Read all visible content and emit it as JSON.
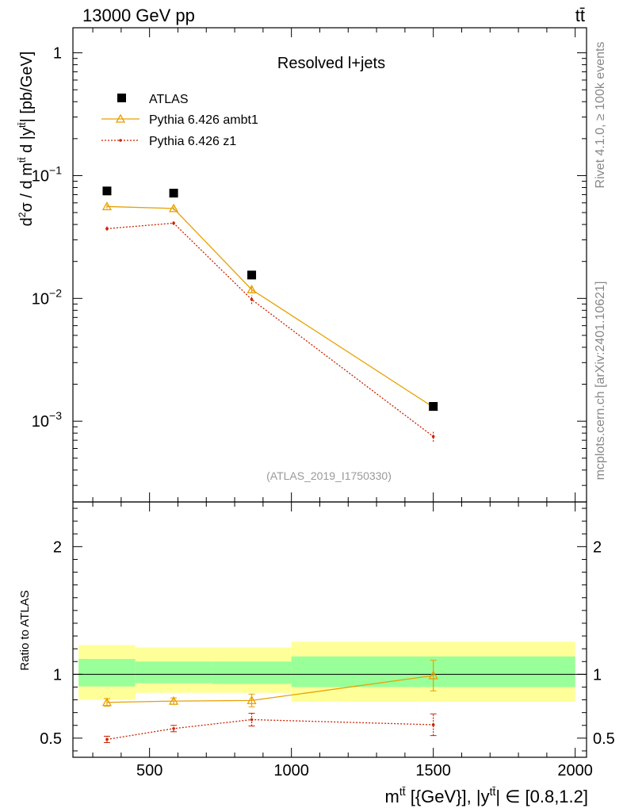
{
  "header": {
    "energy": "13000 GeV pp",
    "process": "tt̄"
  },
  "side_labels": {
    "rivet": "Rivet 4.1.0, ≥ 100k events",
    "mcplots": "mcplots.cern.ch [arXiv:2401.10621]"
  },
  "chart_data": [
    {
      "type": "scatter",
      "panel": "main",
      "title": "Resolved l+jets",
      "analysis_tag": "(ATLAS_2019_I1750330)",
      "ylabel_parts": {
        "d2": "d",
        "sup2": "2",
        "sigma": "σ /  d m",
        "tt1": "tt̄",
        "mid": " d |y",
        "tt2": "tt̄",
        "units": "| [pb/GeV]"
      },
      "yscale": "log",
      "ylim": [
        0.00022,
        1.6
      ],
      "xlim": [
        230,
        2040
      ],
      "y_ticks": [
        {
          "value": 1,
          "mant": "1",
          "exp": ""
        },
        {
          "value": 0.1,
          "mant": "10",
          "exp": "−1"
        },
        {
          "value": 0.01,
          "mant": "10",
          "exp": "−2"
        },
        {
          "value": 0.001,
          "mant": "10",
          "exp": "−3"
        }
      ],
      "legend": {
        "position": "top-left",
        "entries": [
          "ATLAS",
          "Pythia 6.426 ambt1",
          "Pythia 6.426 z1"
        ]
      },
      "series": [
        {
          "name": "ATLAS",
          "marker": "square",
          "color": "#000000",
          "x": [
            350,
            585,
            860,
            1500
          ],
          "y": [
            0.075,
            0.072,
            0.0155,
            0.00132
          ]
        },
        {
          "name": "Pythia 6.426 ambt1",
          "marker": "triangle",
          "color": "#e8a000",
          "x": [
            350,
            585,
            860,
            1500
          ],
          "y": [
            0.056,
            0.054,
            0.0118,
            0.0013
          ],
          "yerr": [
            0.002,
            0.002,
            0.0008,
            9e-05
          ]
        },
        {
          "name": "Pythia 6.426 z1",
          "marker": "dot",
          "color": "#cc2200",
          "x": [
            350,
            585,
            860,
            1500
          ],
          "y": [
            0.037,
            0.041,
            0.0098,
            0.00075
          ],
          "yerr": [
            0.0015,
            0.0015,
            0.0008,
            7e-05
          ]
        }
      ]
    },
    {
      "type": "line",
      "panel": "ratio",
      "ylabel": "Ratio to ATLAS",
      "xlabel_parts": {
        "m": "m",
        "tt1": "tt̄",
        "mid": " [{GeV}], |y",
        "tt2": "tt̄",
        "range": "| ∈ [0.8,1.2]"
      },
      "ylim": [
        0.35,
        2.35
      ],
      "xlim": [
        230,
        2040
      ],
      "y_ticks": [
        {
          "value": 0.5,
          "label": "0.5"
        },
        {
          "value": 1,
          "label": "1"
        },
        {
          "value": 2,
          "label": "2"
        }
      ],
      "x_ticks": [
        {
          "value": 500,
          "label": "500"
        },
        {
          "value": 1000,
          "label": "1000"
        },
        {
          "value": 1500,
          "label": "1500"
        },
        {
          "value": 2000,
          "label": "2000"
        }
      ],
      "bands": [
        {
          "x0": 250,
          "x1": 450,
          "stat": [
            0.905,
            1.12
          ],
          "total": [
            0.8,
            1.23
          ]
        },
        {
          "x0": 450,
          "x1": 720,
          "stat": [
            0.93,
            1.1
          ],
          "total": [
            0.855,
            1.21
          ]
        },
        {
          "x0": 720,
          "x1": 1000,
          "stat": [
            0.925,
            1.1
          ],
          "total": [
            0.855,
            1.21
          ]
        },
        {
          "x0": 1000,
          "x1": 2000,
          "stat": [
            0.9,
            1.14
          ],
          "total": [
            0.785,
            1.255
          ]
        }
      ],
      "band_colors": {
        "stat": "#99ff99",
        "total": "#ffff99"
      },
      "series": [
        {
          "name": "Pythia 6.426 ambt1",
          "color": "#e8a000",
          "x": [
            350,
            585,
            860,
            1500
          ],
          "y": [
            0.78,
            0.79,
            0.795,
            0.99
          ],
          "yerr": [
            0.03,
            0.025,
            0.05,
            0.12
          ]
        },
        {
          "name": "Pythia 6.426 z1",
          "color": "#cc2200",
          "x": [
            350,
            585,
            860,
            1500
          ],
          "y": [
            0.49,
            0.575,
            0.645,
            0.605
          ],
          "yerr": [
            0.025,
            0.025,
            0.05,
            0.085
          ]
        }
      ]
    }
  ]
}
